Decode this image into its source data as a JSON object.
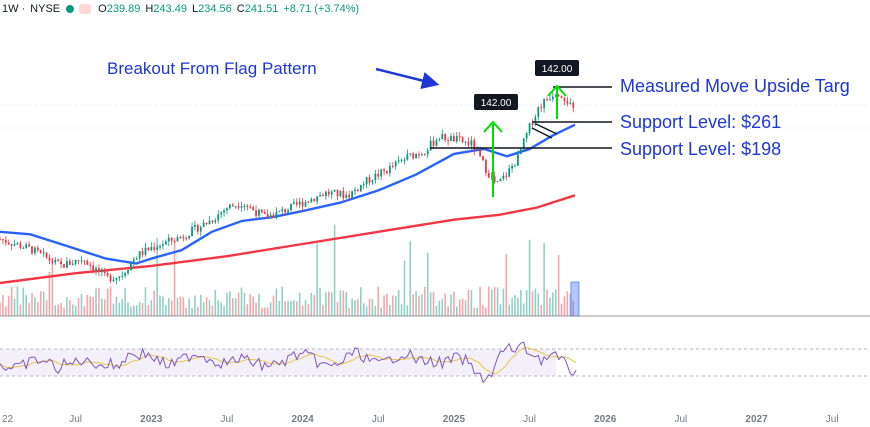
{
  "header": {
    "interval": "1W",
    "separator": "·",
    "exchange": "NYSE",
    "open_label": "O",
    "open": "239.89",
    "high_label": "H",
    "high": "243.49",
    "low_label": "L",
    "low": "234.56",
    "close_label": "C",
    "close": "241.51",
    "change": "+8.71 (+3.74%)"
  },
  "annotations": {
    "breakout": "Breakout From Flag Pattern",
    "measured_move": "Measured Move Upside Targ",
    "support_upper": "Support Level: $261",
    "support_lower": "Support Level: $198",
    "target_box_1": "142.00",
    "target_box_2": "142.00"
  },
  "colors": {
    "up": "#089981",
    "down": "#f23645",
    "ma50": "#2962ff",
    "ma200": "#f23645",
    "annotation_text": "#1f37d6",
    "arrow": "#00e000",
    "rsi": "#7e57c2",
    "rsi_signal": "#e8c547"
  },
  "chart_data": {
    "type": "candlestick",
    "timeframe": "weekly",
    "symbol_exchange": "NYSE",
    "x_tick_labels": [
      "22",
      "Jul",
      "2023",
      "Jul",
      "2024",
      "Jul",
      "2025",
      "Jul",
      "2026",
      "Jul",
      "2027",
      "Jul"
    ],
    "x_tick_dates": [
      2022.0,
      2022.5,
      2023.0,
      2023.5,
      2024.0,
      2024.5,
      2025.0,
      2025.5,
      2026.0,
      2026.5,
      2027.0,
      2027.5
    ],
    "x_range": [
      2022.0,
      2027.75
    ],
    "y_range": [
      90,
      320
    ],
    "close_path": [
      [
        2022.0,
        140
      ],
      [
        2022.2,
        132
      ],
      [
        2022.4,
        118
      ],
      [
        2022.55,
        124
      ],
      [
        2022.7,
        108
      ],
      [
        2022.8,
        110
      ],
      [
        2022.9,
        126
      ],
      [
        2023.0,
        133
      ],
      [
        2023.2,
        142
      ],
      [
        2023.4,
        156
      ],
      [
        2023.5,
        166
      ],
      [
        2023.6,
        170
      ],
      [
        2023.75,
        158
      ],
      [
        2023.85,
        162
      ],
      [
        2024.0,
        170
      ],
      [
        2024.15,
        178
      ],
      [
        2024.3,
        176
      ],
      [
        2024.45,
        190
      ],
      [
        2024.55,
        196
      ],
      [
        2024.7,
        208
      ],
      [
        2024.8,
        212
      ],
      [
        2024.9,
        224
      ],
      [
        2025.0,
        222
      ],
      [
        2025.12,
        218
      ],
      [
        2025.22,
        196
      ],
      [
        2025.28,
        184
      ],
      [
        2025.34,
        192
      ],
      [
        2025.42,
        206
      ],
      [
        2025.5,
        232
      ],
      [
        2025.56,
        248
      ],
      [
        2025.62,
        256
      ],
      [
        2025.68,
        262
      ],
      [
        2025.72,
        258
      ],
      [
        2025.76,
        252
      ],
      [
        2025.8,
        241.51
      ]
    ],
    "ma50_path": [
      [
        2022.0,
        146
      ],
      [
        2022.2,
        144
      ],
      [
        2022.45,
        134
      ],
      [
        2022.7,
        124
      ],
      [
        2022.9,
        120
      ],
      [
        2023.0,
        124
      ],
      [
        2023.2,
        131
      ],
      [
        2023.4,
        146
      ],
      [
        2023.6,
        155
      ],
      [
        2023.8,
        158
      ],
      [
        2024.0,
        163
      ],
      [
        2024.25,
        170
      ],
      [
        2024.5,
        180
      ],
      [
        2024.75,
        193
      ],
      [
        2025.0,
        210
      ],
      [
        2025.2,
        214
      ],
      [
        2025.35,
        208
      ],
      [
        2025.5,
        214
      ],
      [
        2025.65,
        225
      ],
      [
        2025.8,
        234
      ]
    ],
    "ma200_path": [
      [
        2022.0,
        104
      ],
      [
        2022.5,
        112
      ],
      [
        2023.0,
        118
      ],
      [
        2023.5,
        126
      ],
      [
        2024.0,
        136
      ],
      [
        2024.5,
        146
      ],
      [
        2025.0,
        156
      ],
      [
        2025.3,
        160
      ],
      [
        2025.55,
        166
      ],
      [
        2025.8,
        176
      ]
    ],
    "support_levels": [
      {
        "label": "Support Level: $261",
        "value": 261
      },
      {
        "label": "Support Level: $198",
        "value": 198
      }
    ],
    "measured_move_target_label": "Measured Move Upside Targ",
    "measured_move_box_labels": [
      "142.00",
      "142.00"
    ],
    "indicators": [
      "50-week MA",
      "200-week MA",
      "Volume",
      "RSI"
    ]
  }
}
